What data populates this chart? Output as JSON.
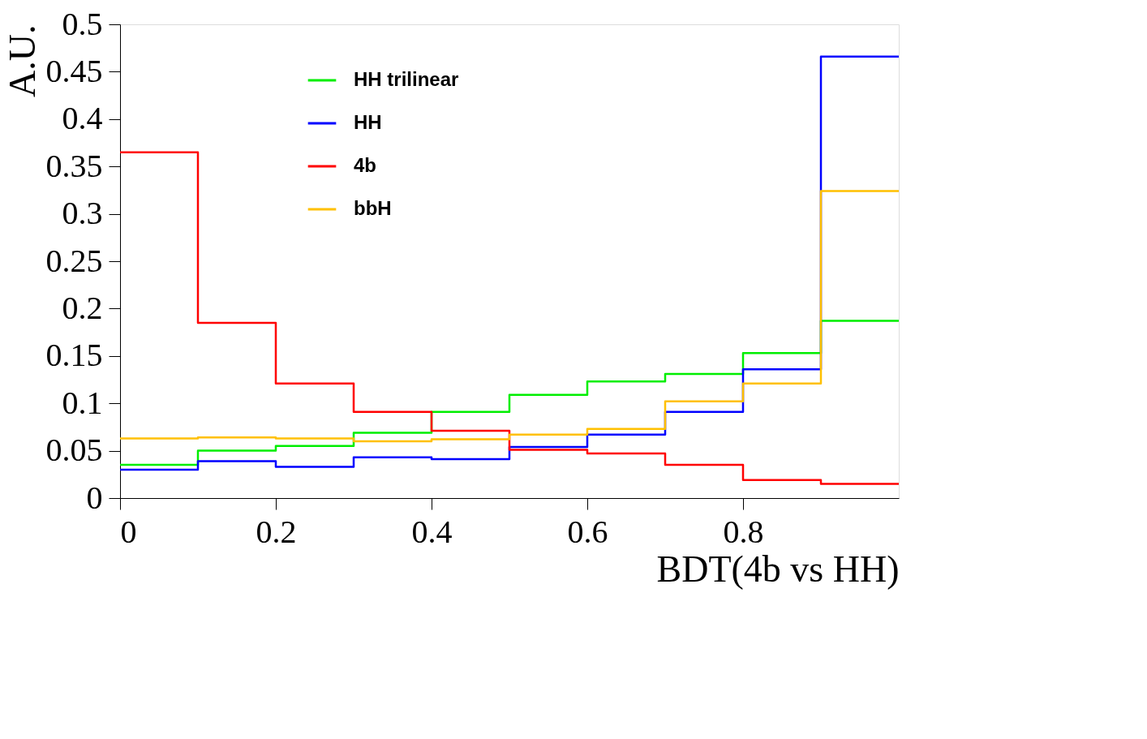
{
  "chart_data": {
    "type": "histogram",
    "xlabel": "BDT(4b vs HH)",
    "ylabel": "A.U.",
    "bins": [
      0,
      0.1,
      0.2,
      0.3,
      0.4,
      0.5,
      0.6,
      0.7,
      0.8,
      0.9,
      1.0
    ],
    "series": [
      {
        "name": "HH trilinear",
        "color": "#00ee00",
        "values": [
          0.035,
          0.05,
          0.055,
          0.069,
          0.091,
          0.109,
          0.123,
          0.131,
          0.153,
          0.187
        ]
      },
      {
        "name": "HH",
        "color": "#0000ff",
        "values": [
          0.03,
          0.039,
          0.033,
          0.043,
          0.041,
          0.054,
          0.067,
          0.091,
          0.136,
          0.466
        ]
      },
      {
        "name": "4b",
        "color": "#ff0000",
        "values": [
          0.365,
          0.185,
          0.121,
          0.091,
          0.071,
          0.051,
          0.047,
          0.035,
          0.019,
          0.015
        ]
      },
      {
        "name": "bbH",
        "color": "#ffc000",
        "values": [
          0.063,
          0.064,
          0.063,
          0.06,
          0.062,
          0.067,
          0.073,
          0.102,
          0.121,
          0.324
        ]
      }
    ],
    "xlim": [
      0,
      1
    ],
    "xticks": [
      0,
      0.2,
      0.4,
      0.6,
      0.8
    ],
    "ylim": [
      0,
      0.5
    ],
    "yticks": [
      0,
      0.05,
      0.1,
      0.15,
      0.2,
      0.25,
      0.3,
      0.35,
      0.4,
      0.45,
      0.5
    ],
    "grid": false,
    "legend": "top left"
  }
}
